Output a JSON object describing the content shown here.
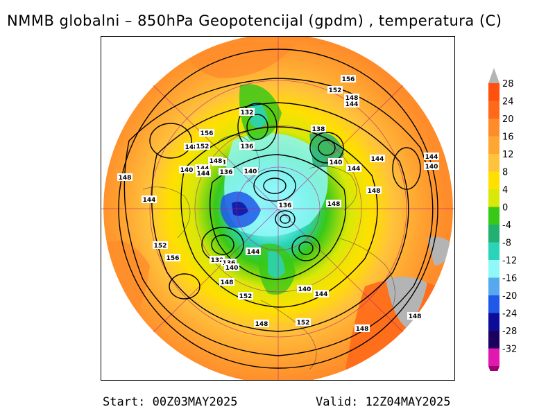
{
  "title": "NMMB globalni – 850hPa Geopotencijal (gpdm) , temperatura (C)",
  "footer": {
    "start": "Start: 00Z03MAY2025",
    "valid": "Valid: 12Z04MAY2025"
  },
  "colorbar": {
    "levels": [
      {
        "value": "28",
        "color": "#ff5010"
      },
      {
        "value": "24",
        "color": "#ff6a1a"
      },
      {
        "value": "20",
        "color": "#ff8c2a"
      },
      {
        "value": "16",
        "color": "#ffa632"
      },
      {
        "value": "12",
        "color": "#ffc23c"
      },
      {
        "value": "8",
        "color": "#ffe000"
      },
      {
        "value": "4",
        "color": "#d8e808"
      },
      {
        "value": "0",
        "color": "#38c818"
      },
      {
        "value": "-4",
        "color": "#22b070"
      },
      {
        "value": "-8",
        "color": "#2ad4b8"
      },
      {
        "value": "-12",
        "color": "#90f8f8"
      },
      {
        "value": "-16",
        "color": "#58a8f0"
      },
      {
        "value": "-20",
        "color": "#2058e8"
      },
      {
        "value": "-24",
        "color": "#0c0c98"
      },
      {
        "value": "-28",
        "color": "#1c0060"
      },
      {
        "value": "-32",
        "color": "#e018b0"
      }
    ],
    "top_cap_color": "#b4b4b4",
    "bottom_cap_color": "#a0006e"
  },
  "contour_labels": [
    {
      "text": "156"
    },
    {
      "text": "152"
    },
    {
      "text": "148"
    },
    {
      "text": "144"
    },
    {
      "text": "132"
    },
    {
      "text": "138"
    },
    {
      "text": "136"
    },
    {
      "text": "148"
    },
    {
      "text": "156"
    },
    {
      "text": "152"
    },
    {
      "text": "148"
    },
    {
      "text": "144"
    },
    {
      "text": "140"
    },
    {
      "text": "144"
    },
    {
      "text": "136"
    },
    {
      "text": "140"
    },
    {
      "text": "140"
    },
    {
      "text": "144"
    },
    {
      "text": "144"
    },
    {
      "text": "144"
    },
    {
      "text": "140"
    },
    {
      "text": "148"
    },
    {
      "text": "148"
    },
    {
      "text": "148"
    },
    {
      "text": "136"
    },
    {
      "text": "148"
    },
    {
      "text": "152"
    },
    {
      "text": "156"
    },
    {
      "text": "132"
    },
    {
      "text": "136"
    },
    {
      "text": "140"
    },
    {
      "text": "144"
    },
    {
      "text": "148"
    },
    {
      "text": "152"
    },
    {
      "text": "140"
    },
    {
      "text": "144"
    },
    {
      "text": "144"
    },
    {
      "text": "148"
    },
    {
      "text": "152"
    },
    {
      "text": "148"
    },
    {
      "text": "148"
    }
  ]
}
